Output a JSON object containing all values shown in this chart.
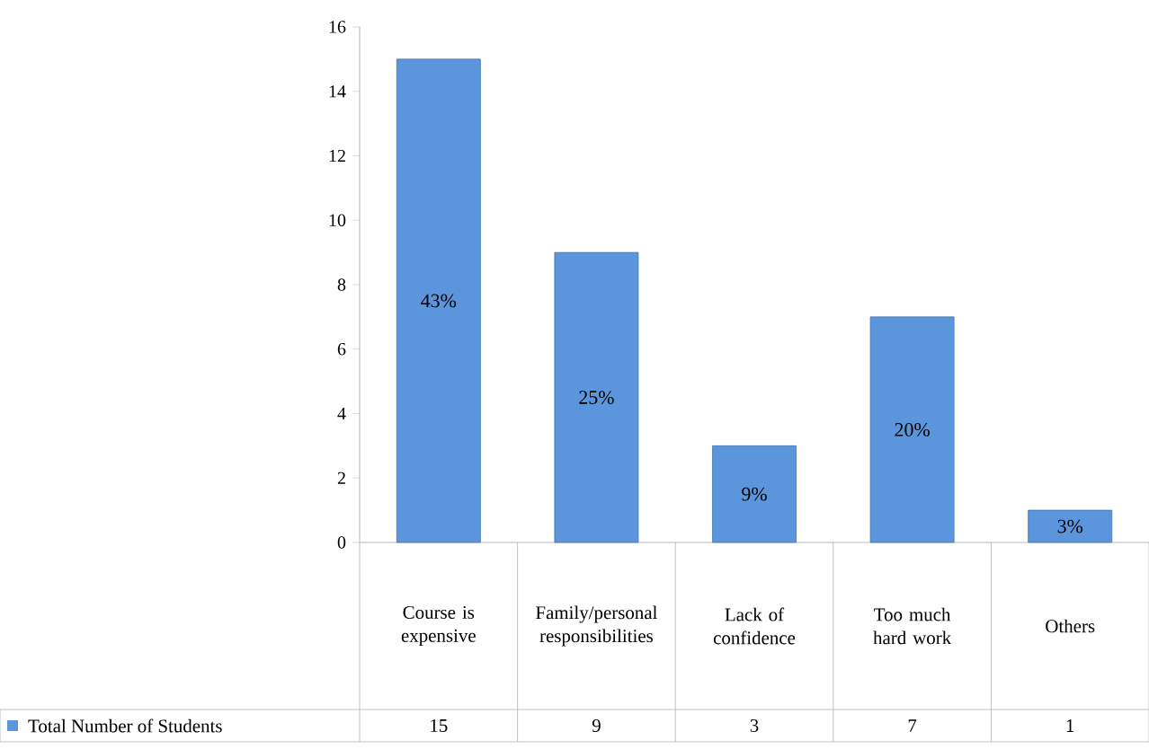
{
  "chart_data": {
    "type": "bar",
    "categories": [
      "Course is expensive",
      "Family/personal responsibilities",
      "Lack of confidence",
      "Too much hard work",
      "Others"
    ],
    "series": [
      {
        "name": "Total Number of Students",
        "color": "#5b95dc",
        "values": [
          15,
          9,
          3,
          7,
          1
        ],
        "value_labels": [
          "15",
          "9",
          "3",
          "7",
          "1"
        ]
      }
    ],
    "annotations": [
      "43%",
      "25%",
      "9%",
      "20%",
      "3%"
    ],
    "data_labels": true,
    "ylim": [
      0,
      16
    ],
    "yticks": [
      0,
      2,
      4,
      6,
      8,
      10,
      12,
      14,
      16
    ]
  }
}
